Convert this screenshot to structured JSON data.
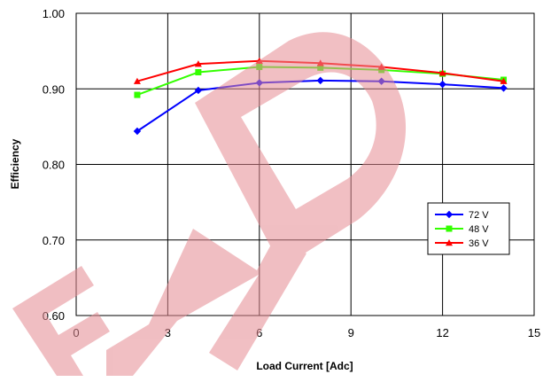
{
  "chart_data": {
    "type": "line",
    "xlabel": "Load Current [Adc]",
    "ylabel": "Efficiency",
    "xlim": [
      0,
      15
    ],
    "ylim": [
      0.6,
      1.0
    ],
    "x_ticks": [
      0,
      3,
      6,
      9,
      12,
      15
    ],
    "y_ticks": [
      0.6,
      0.7,
      0.8,
      0.9,
      1.0
    ],
    "x_tick_labels": [
      "0",
      "3",
      "6",
      "9",
      "12",
      "15"
    ],
    "y_tick_labels": [
      "0.60",
      "0.70",
      "0.80",
      "0.90",
      "1.00"
    ],
    "grid": true,
    "legend_position": "right-middle",
    "series": [
      {
        "name": "72 V",
        "color": "#0000ff",
        "marker": "diamond",
        "x": [
          2,
          4,
          6,
          8,
          10,
          12,
          14
        ],
        "y": [
          0.844,
          0.898,
          0.908,
          0.911,
          0.91,
          0.906,
          0.901
        ]
      },
      {
        "name": "48 V",
        "color": "#33ff00",
        "marker": "square",
        "x": [
          2,
          4,
          6,
          8,
          10,
          12,
          14
        ],
        "y": [
          0.892,
          0.922,
          0.929,
          0.928,
          0.925,
          0.92,
          0.912
        ]
      },
      {
        "name": "36 V",
        "color": "#ff0000",
        "marker": "triangle",
        "x": [
          2,
          4,
          6,
          8,
          10,
          12,
          14
        ],
        "y": [
          0.91,
          0.933,
          0.937,
          0.934,
          0.929,
          0.921,
          0.91
        ]
      }
    ]
  },
  "watermark": {
    "text": "END",
    "color": "#e58a92"
  }
}
